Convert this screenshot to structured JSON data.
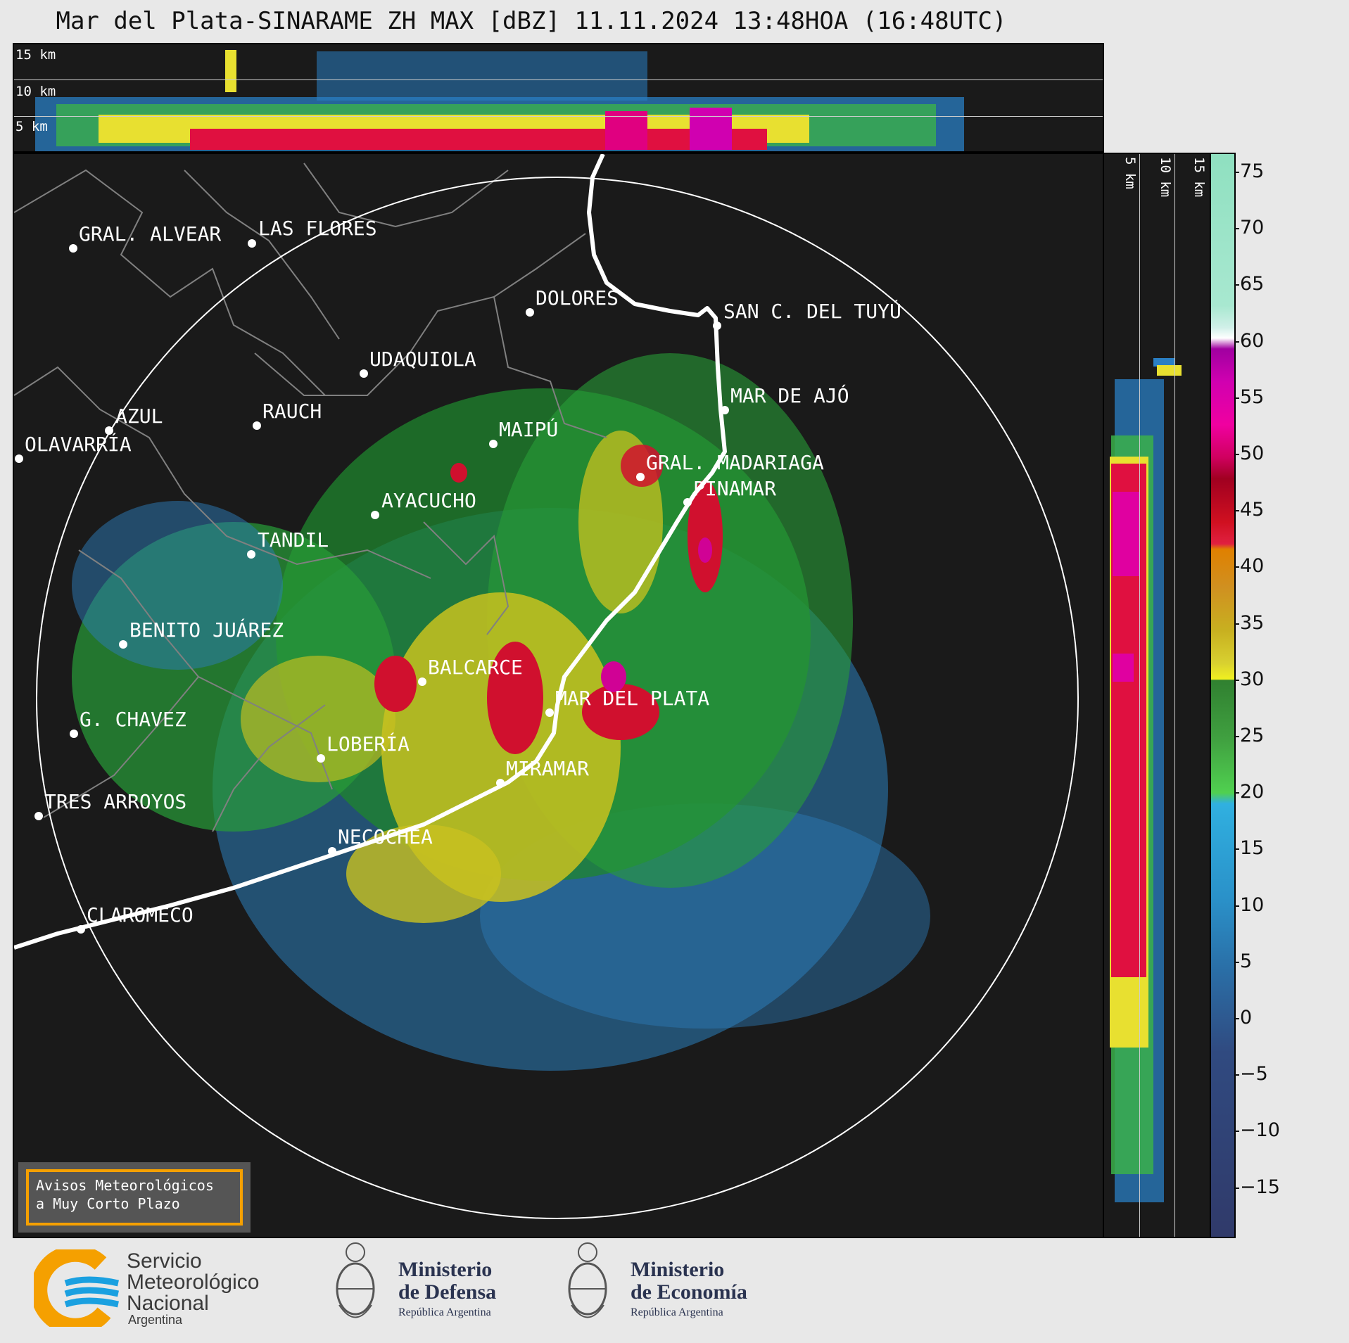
{
  "title": "Mar del Plata-SINARAME ZH MAX [dBZ] 11.11.2024 13:48HOA (16:48UTC)",
  "top_panel": {
    "labels": [
      "15 km",
      "10 km",
      "5 km"
    ]
  },
  "side_panel": {
    "labels": [
      "5 km",
      "10 km",
      "15 km"
    ]
  },
  "cities": [
    {
      "name": "GRAL. ALVEAR"
    },
    {
      "name": "LAS FLORES"
    },
    {
      "name": "DOLORES"
    },
    {
      "name": "SAN C. DEL TUYÚ"
    },
    {
      "name": "UDAQUIOLA"
    },
    {
      "name": "MAR DE AJÓ"
    },
    {
      "name": "RAUCH"
    },
    {
      "name": "AZUL"
    },
    {
      "name": "MAIPÚ"
    },
    {
      "name": "OLAVARRÍA"
    },
    {
      "name": "GRAL. MADARIAGA"
    },
    {
      "name": "AYACUCHO"
    },
    {
      "name": "PINAMAR"
    },
    {
      "name": "TANDIL"
    },
    {
      "name": "BENITO JUÁREZ"
    },
    {
      "name": "BALCARCE"
    },
    {
      "name": "MAR DEL PLATA"
    },
    {
      "name": "G. CHAVEZ"
    },
    {
      "name": "LOBERÍA"
    },
    {
      "name": "MIRAMAR"
    },
    {
      "name": "TRES ARROYOS"
    },
    {
      "name": "NECOCHEA"
    },
    {
      "name": "CLAROMECO"
    }
  ],
  "colorbar": {
    "unit": "dBZ",
    "ticks": [
      "75",
      "70",
      "65",
      "60",
      "55",
      "50",
      "45",
      "40",
      "35",
      "30",
      "25",
      "20",
      "15",
      "10",
      "5",
      "0",
      "−5",
      "−10",
      "−15"
    ]
  },
  "avisos": {
    "line1": "Avisos Meteorológicos",
    "line2": "a Muy Corto Plazo"
  },
  "logos": {
    "smn": {
      "line1": "Servicio",
      "line2": "Meteorológico",
      "line3": "Nacional",
      "line4": "Argentina"
    },
    "defensa": {
      "line1": "Ministerio",
      "line2": "de Defensa",
      "line3": "República Argentina"
    },
    "economia": {
      "line1": "Ministerio",
      "line2": "de Economía",
      "line3": "República Argentina"
    }
  },
  "colors": {
    "background": "#1a1a1a",
    "coast": "#ffffff",
    "borders": "#808080",
    "smn_orange": "#f5a000",
    "smn_blue": "#1aa0e0"
  }
}
